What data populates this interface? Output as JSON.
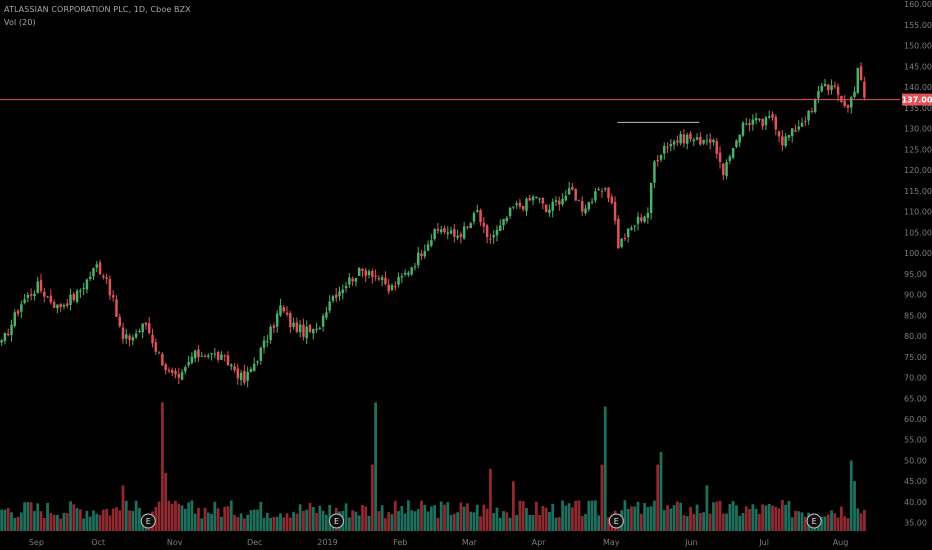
{
  "header": {
    "title": "ATLASSIAN CORPORATION PLC, 1D, Cboe BZX",
    "volume_label": "Vol (20)"
  },
  "colors": {
    "background": "#000000",
    "up": "#4caf6a",
    "down": "#e0535a",
    "vol_up": "#1f6f5e",
    "vol_down": "#8f2a30",
    "price_line": "#e0535a",
    "axis_text": "#7d7d7d",
    "earnings_marker_stroke": "#c9c9c9"
  },
  "chart_data": {
    "type": "candlestick",
    "symbol": "ATLASSIAN CORPORATION PLC",
    "interval": "1D",
    "exchange": "Cboe BZX",
    "y_ticks": [
      "160.00",
      "155.00",
      "150.00",
      "145.00",
      "140.00",
      "135.00",
      "130.00",
      "125.00",
      "120.00",
      "115.00",
      "110.00",
      "105.00",
      "100.00",
      "95.00",
      "90.00",
      "85.00",
      "80.00",
      "75.00",
      "70.00",
      "65.00",
      "60.00",
      "55.00",
      "50.00",
      "45.00",
      "40.00",
      "35.00"
    ],
    "x_ticks": [
      "Sep",
      "Oct",
      "Nov",
      "Dec",
      "2019",
      "Feb",
      "Mar",
      "Apr",
      "May",
      "Jun",
      "Jul",
      "Aug"
    ],
    "price_line": {
      "value": 137.0,
      "label": "137.00"
    },
    "resistance_line": {
      "value": 131.5,
      "from_label": "May",
      "to_label": "Jun"
    },
    "earnings_markers": {
      "label": "E",
      "month_positions": [
        "Oct",
        "2019",
        "May",
        "Jul"
      ]
    },
    "price_anchors": [
      {
        "i": 0,
        "p": 78
      },
      {
        "i": 6,
        "p": 88
      },
      {
        "i": 11,
        "p": 92
      },
      {
        "i": 17,
        "p": 87
      },
      {
        "i": 23,
        "p": 90
      },
      {
        "i": 29,
        "p": 97
      },
      {
        "i": 32,
        "p": 94
      },
      {
        "i": 37,
        "p": 79
      },
      {
        "i": 40,
        "p": 80
      },
      {
        "i": 44,
        "p": 83
      },
      {
        "i": 47,
        "p": 77
      },
      {
        "i": 51,
        "p": 71
      },
      {
        "i": 54,
        "p": 69
      },
      {
        "i": 58,
        "p": 75
      },
      {
        "i": 62,
        "p": 76
      },
      {
        "i": 66,
        "p": 75
      },
      {
        "i": 70,
        "p": 73
      },
      {
        "i": 74,
        "p": 69
      },
      {
        "i": 78,
        "p": 75
      },
      {
        "i": 82,
        "p": 81
      },
      {
        "i": 85,
        "p": 87
      },
      {
        "i": 88,
        "p": 83
      },
      {
        "i": 92,
        "p": 81
      },
      {
        "i": 96,
        "p": 81
      },
      {
        "i": 100,
        "p": 89
      },
      {
        "i": 104,
        "p": 92
      },
      {
        "i": 108,
        "p": 95
      },
      {
        "i": 112,
        "p": 96
      },
      {
        "i": 115,
        "p": 94
      },
      {
        "i": 118,
        "p": 91
      },
      {
        "i": 122,
        "p": 94
      },
      {
        "i": 126,
        "p": 98
      },
      {
        "i": 130,
        "p": 103
      },
      {
        "i": 134,
        "p": 106
      },
      {
        "i": 138,
        "p": 104
      },
      {
        "i": 142,
        "p": 106
      },
      {
        "i": 145,
        "p": 110
      },
      {
        "i": 148,
        "p": 103
      },
      {
        "i": 152,
        "p": 106
      },
      {
        "i": 156,
        "p": 111
      },
      {
        "i": 160,
        "p": 112
      },
      {
        "i": 163,
        "p": 114
      },
      {
        "i": 166,
        "p": 110
      },
      {
        "i": 170,
        "p": 113
      },
      {
        "i": 174,
        "p": 115
      },
      {
        "i": 177,
        "p": 111
      },
      {
        "i": 180,
        "p": 113
      },
      {
        "i": 183,
        "p": 115
      },
      {
        "i": 186,
        "p": 113
      },
      {
        "i": 188,
        "p": 102
      },
      {
        "i": 191,
        "p": 105
      },
      {
        "i": 194,
        "p": 108
      },
      {
        "i": 197,
        "p": 110
      },
      {
        "i": 199,
        "p": 122
      },
      {
        "i": 202,
        "p": 126
      },
      {
        "i": 205,
        "p": 127
      },
      {
        "i": 209,
        "p": 128
      },
      {
        "i": 212,
        "p": 127
      },
      {
        "i": 215,
        "p": 128
      },
      {
        "i": 218,
        "p": 125
      },
      {
        "i": 220,
        "p": 118
      },
      {
        "i": 223,
        "p": 126
      },
      {
        "i": 226,
        "p": 131
      },
      {
        "i": 229,
        "p": 132
      },
      {
        "i": 232,
        "p": 131
      },
      {
        "i": 235,
        "p": 133
      },
      {
        "i": 238,
        "p": 127
      },
      {
        "i": 241,
        "p": 129
      },
      {
        "i": 244,
        "p": 132
      },
      {
        "i": 247,
        "p": 134
      },
      {
        "i": 250,
        "p": 141
      },
      {
        "i": 253,
        "p": 140
      },
      {
        "i": 255,
        "p": 138
      },
      {
        "i": 258,
        "p": 135
      },
      {
        "i": 260,
        "p": 140
      },
      {
        "i": 261,
        "p": 145
      },
      {
        "i": 262,
        "p": 141
      },
      {
        "i": 263,
        "p": 137
      }
    ],
    "volume_spikes": [
      {
        "i": 49,
        "v": 64
      },
      {
        "i": 50,
        "v": 47
      },
      {
        "i": 114,
        "v": 64
      },
      {
        "i": 113,
        "v": 49
      },
      {
        "i": 184,
        "v": 63
      },
      {
        "i": 183,
        "v": 49
      },
      {
        "i": 201,
        "v": 52
      },
      {
        "i": 200,
        "v": 49
      },
      {
        "i": 259,
        "v": 50
      },
      {
        "i": 260,
        "v": 45
      },
      {
        "i": 8,
        "v": 40
      },
      {
        "i": 37,
        "v": 44
      },
      {
        "i": 149,
        "v": 48
      },
      {
        "i": 156,
        "v": 45
      },
      {
        "i": 215,
        "v": 44
      }
    ],
    "n_bars": 264,
    "ylim": [
      33,
      161
    ]
  }
}
